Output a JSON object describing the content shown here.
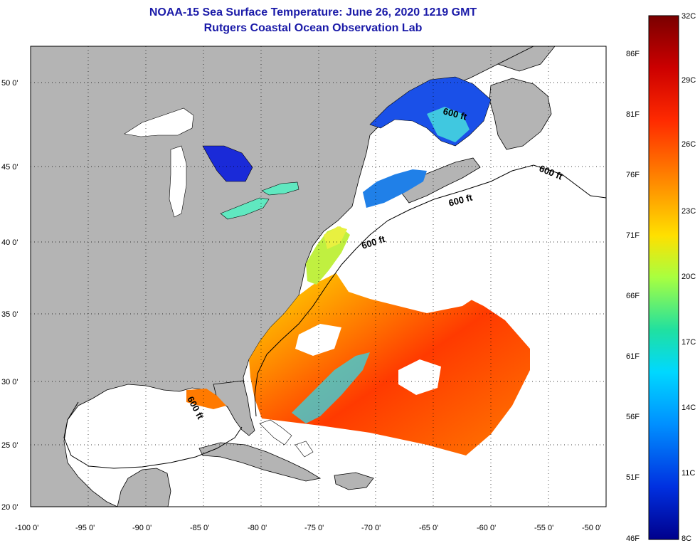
{
  "title": {
    "line1": "NOAA-15 Sea Surface Temperature:  June 26, 2020 1219 GMT",
    "line2": "Rutgers Coastal Ocean Observation Lab"
  },
  "map": {
    "lon_ticks": [
      "-100 0'",
      "-95 0'",
      "-90 0'",
      "-85 0'",
      "-80 0'",
      "-75 0'",
      "-70 0'",
      "-65 0'",
      "-60 0'",
      "-55 0'",
      "-50 0'"
    ],
    "lat_ticks": [
      "50 0'",
      "45 0'",
      "40 0'",
      "35 0'",
      "30 0'",
      "25 0'",
      "20 0'"
    ],
    "contour_label": "600 ft"
  },
  "colorbar": {
    "celsius": [
      "32C",
      "29C",
      "26C",
      "23C",
      "20C",
      "17C",
      "14C",
      "11C",
      "8C"
    ],
    "fahrenheit": [
      "86F",
      "81F",
      "76F",
      "71F",
      "66F",
      "61F",
      "56F",
      "51F",
      "46F"
    ]
  },
  "colors": {
    "land": "#b4b4b4",
    "title": "#1a1aa8",
    "cbar_stops": [
      "#7a0000",
      "#cc0000",
      "#ff2a00",
      "#ff8c00",
      "#ffe000",
      "#a8ff40",
      "#20e0a0",
      "#00d8ff",
      "#0090ff",
      "#0030e0",
      "#00008c"
    ]
  }
}
